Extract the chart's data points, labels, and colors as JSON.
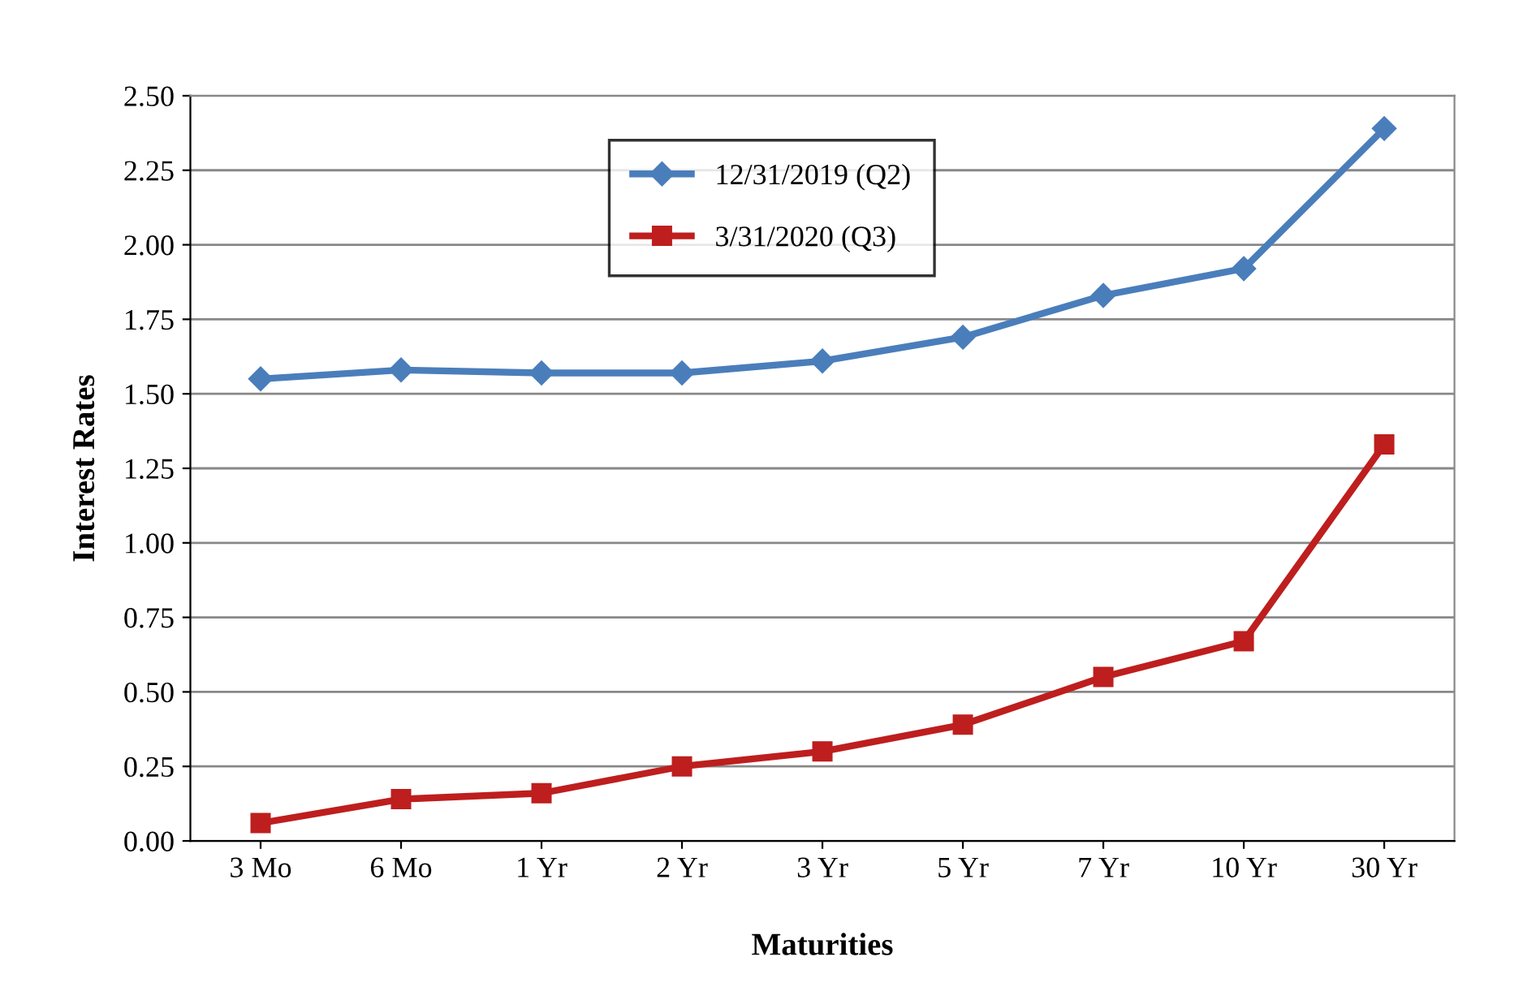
{
  "chart_data": {
    "type": "line",
    "xlabel": "Maturities",
    "ylabel": "Interest Rates",
    "categories": [
      "3 Mo",
      "6 Mo",
      "1 Yr",
      "2 Yr",
      "3 Yr",
      "5 Yr",
      "7 Yr",
      "10 Yr",
      "30 Yr"
    ],
    "series": [
      {
        "name": "12/31/2019 (Q2)",
        "color": "#4a7ebb",
        "marker": "diamond",
        "values": [
          1.55,
          1.58,
          1.57,
          1.57,
          1.61,
          1.69,
          1.83,
          1.92,
          2.39
        ]
      },
      {
        "name": "3/31/2020 (Q3)",
        "color": "#be1e1e",
        "marker": "square",
        "values": [
          0.06,
          0.14,
          0.16,
          0.25,
          0.3,
          0.39,
          0.55,
          0.67,
          1.33
        ]
      }
    ],
    "ylim": [
      0,
      2.5
    ],
    "yticks": [
      {
        "value": 0,
        "label": "0.00"
      },
      {
        "value": 0.25,
        "label": "0.25"
      },
      {
        "value": 0.5,
        "label": "0.50"
      },
      {
        "value": 0.75,
        "label": "0.75"
      },
      {
        "value": 1,
        "label": "1.00"
      },
      {
        "value": 1.25,
        "label": "1.25"
      },
      {
        "value": 1.5,
        "label": "1.50"
      },
      {
        "value": 1.75,
        "label": "1.75"
      },
      {
        "value": 2,
        "label": "2.00"
      },
      {
        "value": 2.25,
        "label": "2.25"
      },
      {
        "value": 2.5,
        "label": "2.50"
      }
    ],
    "grid": "y",
    "legend": "top",
    "line_style": "solid"
  }
}
